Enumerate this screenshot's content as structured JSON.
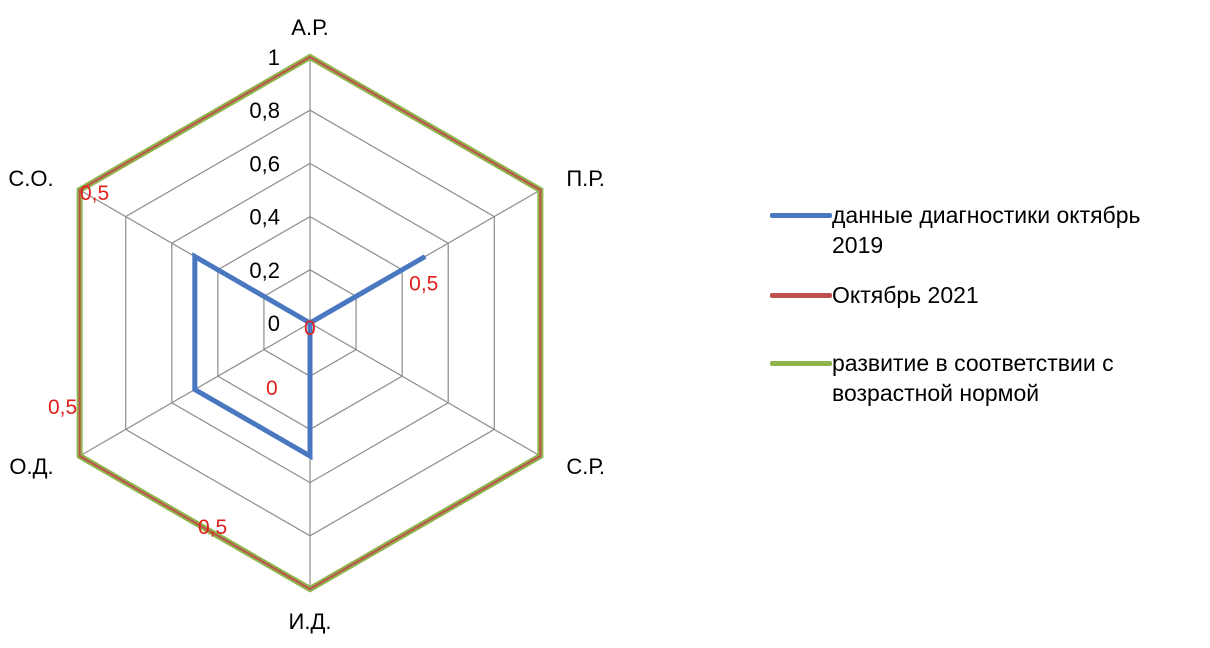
{
  "chart_data": {
    "type": "radar",
    "axes": [
      "А.Р.",
      "П.Р.",
      "С.Р.",
      "И.Д.",
      "О.Д.",
      "С.О."
    ],
    "scale": {
      "min": 0,
      "max": 1,
      "step": 0.2
    },
    "tick_labels": [
      "0",
      "0,2",
      "0,4",
      "0,6",
      "0,8",
      "1"
    ],
    "grid": true,
    "legend_position": "right",
    "series": [
      {
        "name": "данные диагностики октябрь 2019",
        "color": "#4a78c0",
        "values": [
          0,
          0.5,
          0,
          0.5,
          0.5,
          0.5
        ]
      },
      {
        "name": "Октябрь 2021",
        "color": "#c0504d",
        "values": [
          1,
          1,
          1,
          1,
          1,
          1
        ]
      },
      {
        "name": "развитие в соответствии с возрастной нормой",
        "color": "#8db54b",
        "values": [
          1,
          1,
          1,
          1,
          1,
          1
        ]
      }
    ],
    "data_labels": [
      {
        "text": "0",
        "axis": 0,
        "value": 0
      },
      {
        "text": "0,5",
        "axis": 1,
        "value": 0.5
      },
      {
        "text": "0",
        "axis": 2,
        "value": 0
      },
      {
        "text": "0,5",
        "axis": 3,
        "value": 0.5
      },
      {
        "text": "0,5",
        "axis": 4,
        "value": 0.5
      },
      {
        "text": "0,5",
        "axis": 5,
        "value": 0.5
      }
    ]
  }
}
